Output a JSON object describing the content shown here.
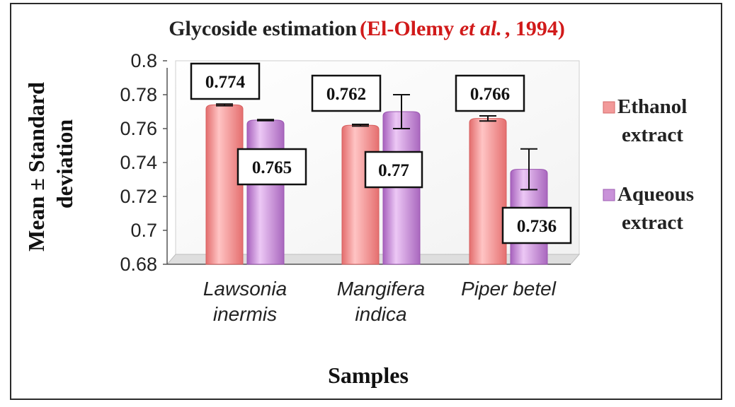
{
  "chart_data": {
    "type": "bar",
    "title": "Glycoside estimation",
    "title_citation_prefix": "(El-Olemy ",
    "title_citation_italic": "et al.",
    "title_citation_suffix": ", 1994)",
    "xlabel": "Samples",
    "ylabel_lines": [
      "Mean ± Standard",
      "deviation"
    ],
    "ylim": [
      0.68,
      0.8
    ],
    "yticks": [
      "0.8",
      "0.78",
      "0.76",
      "0.74",
      "0.72",
      "0.7",
      "0.68"
    ],
    "categories": [
      [
        "Lawsonia",
        "inermis"
      ],
      [
        "Mangifera",
        "indica"
      ],
      [
        "Piper betel"
      ]
    ],
    "series": [
      {
        "name_lines": [
          "Ethanol",
          "extract"
        ],
        "color": "#f08c8c",
        "values": [
          0.774,
          0.762,
          0.766
        ],
        "labels": [
          "0.774",
          "0.762",
          "0.766"
        ],
        "errors": [
          0.0005,
          0.0005,
          0.0015
        ]
      },
      {
        "name_lines": [
          "Aqueous",
          "extract"
        ],
        "color": "#c58ad6",
        "values": [
          0.765,
          0.77,
          0.736
        ],
        "labels": [
          "0.765",
          "0.77",
          "0.736"
        ],
        "errors": [
          0.0003,
          0.01,
          0.012
        ]
      }
    ],
    "grid": false,
    "legend_position": "right"
  }
}
